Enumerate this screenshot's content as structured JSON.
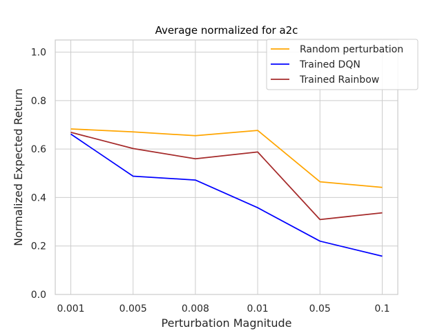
{
  "chart_data": {
    "type": "line",
    "title": "Average normalized for a2c",
    "xlabel": "Perturbation Magnitude",
    "ylabel": "Normalized Expected Return",
    "categories": [
      "0.001",
      "0.005",
      "0.008",
      "0.01",
      "0.05",
      "0.1"
    ],
    "ylim": [
      0.0,
      1.05
    ],
    "yticks": [
      "0.0",
      "0.2",
      "0.4",
      "0.6",
      "0.8",
      "1.0"
    ],
    "grid": true,
    "legend_position": "top-right",
    "series": [
      {
        "name": "Random perturbation",
        "color": "#ffa500",
        "values": [
          0.683,
          0.671,
          0.655,
          0.677,
          0.465,
          0.442
        ]
      },
      {
        "name": "Trained DQN",
        "color": "#0000ff",
        "values": [
          0.662,
          0.488,
          0.472,
          0.358,
          0.22,
          0.158
        ]
      },
      {
        "name": "Trained Rainbow",
        "color": "#a52a2a",
        "values": [
          0.669,
          0.602,
          0.56,
          0.588,
          0.309,
          0.337
        ]
      }
    ]
  }
}
